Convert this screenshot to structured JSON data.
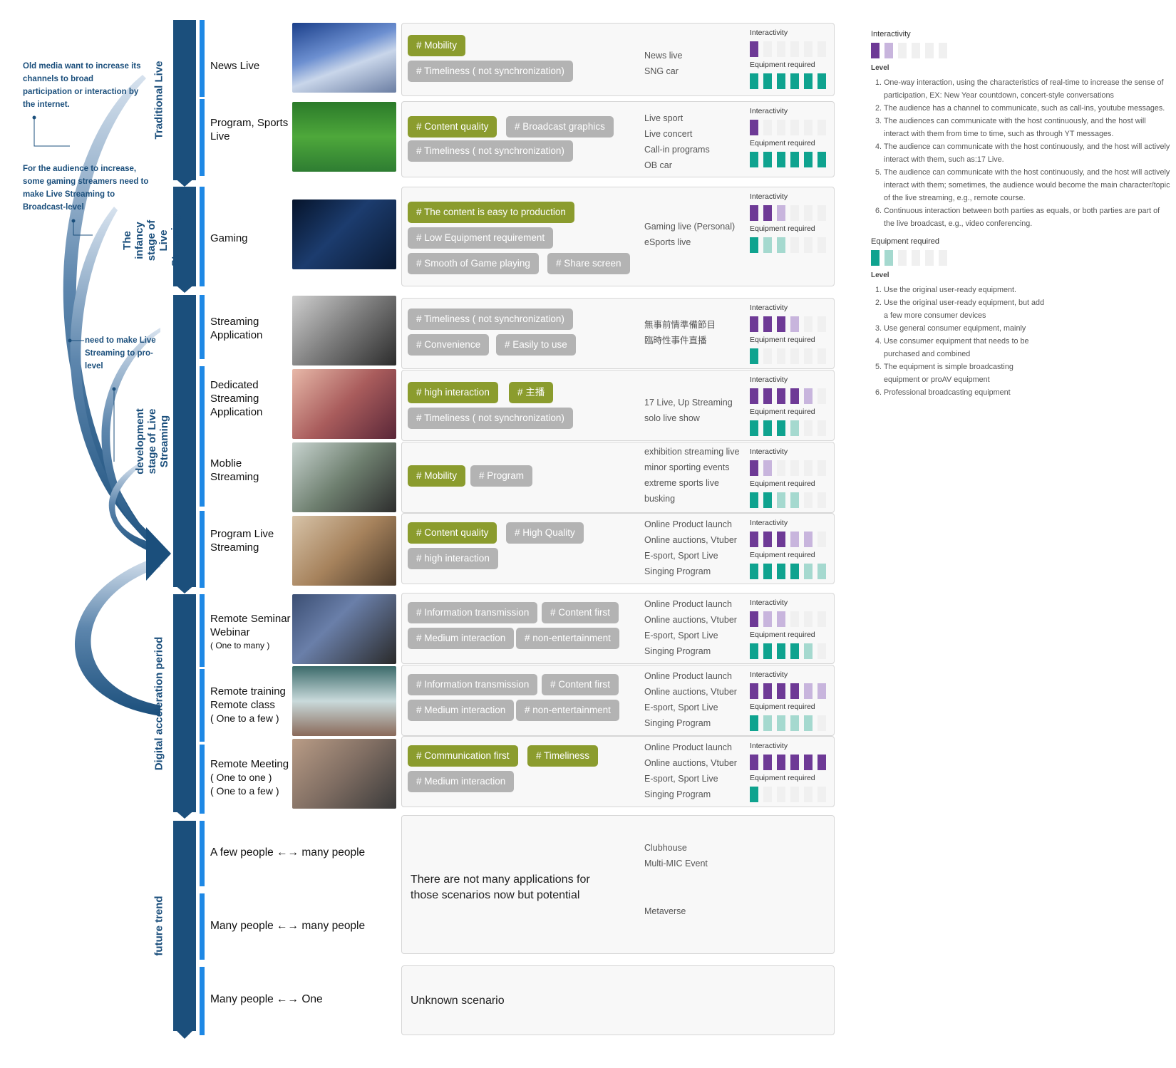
{
  "colors": {
    "primary_blue": "#1b4f7c",
    "row_blue": "#1e88e5",
    "tag_green": "#8b9c2e",
    "tag_gray": "#b3b3b3",
    "interactivity_dark": "#6e3a96",
    "interactivity_light": "#c8b5dd",
    "equipment_dark": "#0fa38f",
    "equipment_light": "#a5d9cf"
  },
  "left_notes": {
    "note1": "Old media want to increase its channels to broad participation or interaction by the internet.",
    "note2": "For the audience to increase, some gaming streamers need to make Live Streaming to Broadcast-level",
    "note3": "need to make Live Streaming to pro-level"
  },
  "phases": {
    "traditional": "Traditional Live",
    "infancy": "The infancy stage of Live Streaming",
    "development": "development stage of Live Streaming",
    "digital": "Digital acceleration period",
    "future": "future trend"
  },
  "labels": {
    "interactivity": "Interactivity",
    "equipment": "Equipment required"
  },
  "rows": [
    {
      "name": "News Live",
      "interactivity": [
        1,
        0,
        0,
        0,
        0,
        0
      ],
      "equipment": [
        1,
        1,
        1,
        1,
        1,
        1
      ],
      "tags": [
        "Mobility",
        "Timeliness ( not synchronization)"
      ],
      "examples": [
        "News live",
        "SNG car"
      ]
    },
    {
      "name": "Program, Sports Live",
      "interactivity": [
        1,
        0,
        0,
        0,
        0,
        0
      ],
      "equipment": [
        1,
        1,
        1,
        1,
        1,
        1
      ],
      "tags": [
        "Content quality",
        "Broadcast graphics",
        "Timeliness ( not synchronization)"
      ],
      "examples": [
        "Live sport",
        "Live concert",
        "Call-in programs",
        "OB car"
      ]
    },
    {
      "name": "Gaming",
      "interactivity": [
        1,
        1,
        0.5,
        0,
        0,
        0
      ],
      "equipment": [
        1,
        0.5,
        0.5,
        0,
        0,
        0
      ],
      "tags": [
        "The content is easy to production",
        "Low Equipment requirement",
        "Smooth of Game playing",
        "Share screen"
      ],
      "examples": [
        "Gaming live (Personal)",
        "eSports live"
      ]
    },
    {
      "name": "Streaming Application",
      "interactivity": [
        1,
        1,
        1,
        0.5,
        0,
        0
      ],
      "equipment": [
        1,
        0,
        0,
        0,
        0,
        0
      ],
      "tags": [
        "Timeliness ( not synchronization)",
        "Convenience",
        "Easily to use"
      ],
      "examples": [
        "無事前情準備節目",
        "臨時性事件直播"
      ]
    },
    {
      "name": "Dedicated Streaming Application",
      "interactivity": [
        1,
        1,
        1,
        1,
        0.5,
        0
      ],
      "equipment": [
        1,
        1,
        1,
        0.5,
        0,
        0
      ],
      "tags": [
        "high interaction",
        "主播",
        "Timeliness ( not synchronization)"
      ],
      "examples": [
        "17 Live, Up Streaming",
        "solo live show"
      ]
    },
    {
      "name": "Moblie Streaming",
      "interactivity": [
        1,
        0.5,
        0,
        0,
        0,
        0
      ],
      "equipment": [
        1,
        1,
        0.5,
        0.5,
        0,
        0
      ],
      "tags": [
        "Mobility",
        "Program"
      ],
      "examples": [
        "exhibition streaming live",
        "minor sporting events",
        "extreme sports live",
        "busking"
      ]
    },
    {
      "name": "Program Live Streaming",
      "interactivity": [
        1,
        1,
        1,
        0.5,
        0.5,
        0
      ],
      "equipment": [
        1,
        1,
        1,
        1,
        0.5,
        0.5
      ],
      "tags": [
        "Content quality",
        "High Quality",
        "high interaction"
      ],
      "examples": [
        "Online Product launch",
        "Online auctions, Vtuber",
        "E-sport, Sport Live",
        "Singing Program"
      ]
    },
    {
      "name": "Remote Seminar Webinar",
      "sub": "( One to many )",
      "interactivity": [
        1,
        0.5,
        0.5,
        0,
        0,
        0
      ],
      "equipment": [
        1,
        1,
        1,
        1,
        0.5,
        0
      ],
      "tags": [
        "Information transmission",
        "Content first",
        "Medium interaction",
        "non-entertainment"
      ],
      "examples": [
        "Online Product launch",
        "Online auctions, Vtuber",
        "E-sport, Sport Live",
        "Singing Program"
      ]
    },
    {
      "name": "Remote training Remote class",
      "sub": "( One to a few )",
      "interactivity": [
        1,
        1,
        1,
        1,
        0.5,
        0.5
      ],
      "equipment": [
        1,
        0.5,
        0.5,
        0.5,
        0.5,
        0
      ],
      "tags": [
        "Information transmission",
        "Content first",
        "Medium interaction",
        "non-entertainment"
      ],
      "examples": [
        "Online Product launch",
        "Online auctions, Vtuber",
        "E-sport, Sport Live",
        "Singing Program"
      ]
    },
    {
      "name": "Remote Meeting",
      "sub": "( One to one )\n( One to a few )",
      "interactivity": [
        1,
        1,
        1,
        1,
        1,
        1
      ],
      "equipment": [
        1,
        0,
        0,
        0,
        0,
        0
      ],
      "tags": [
        "Communication first",
        "Timeliness",
        "Medium interaction"
      ],
      "examples": [
        "Online Product launch",
        "Online auctions, Vtuber",
        "E-sport, Sport Live",
        "Singing Program"
      ]
    }
  ],
  "future": {
    "row1": "A few people ←→ many people",
    "row2": "Many people ←→ many people",
    "row3": "Many people ←→ One",
    "card1_text": "There are not many applications for those scenarios now but potential",
    "card1_examples": [
      "Clubhouse",
      "Multi-MIC Event",
      "Metaverse"
    ],
    "card2_text": "Unknown scenario"
  },
  "legend": {
    "interactivity_title": "Interactivity",
    "level": "Level",
    "interactivity_levels": [
      "One-way interaction, using the characteristics of real-time to increase the sense of participation, EX: New Year countdown, concert-style conversations",
      "The audience has a channel to communicate, such as call-ins, youtube messages.",
      "The audiences can communicate with the host continuously, and the host will interact with them from time to time, such as through YT messages.",
      "The audience can communicate with the host continuously, and the host will actively interact with them, such as:17 Live.",
      "The audience can communicate with the host continuously, and the host will actively interact with them; sometimes, the audience would become the main character/topic of the live streaming, e.g., remote course.",
      "Continuous interaction between both parties as equals, or both parties are part of the live broadcast, e.g., video conferencing."
    ],
    "equipment_title": "Equipment required",
    "equipment_levels": [
      "Use the original user-ready equipment.",
      "Use the original user-ready equipment, but add a few more consumer devices",
      "Use general consumer equipment, mainly",
      "Use consumer equipment that needs to be purchased and combined",
      "The equipment is simple broadcasting equipment or proAV equipment",
      "Professional broadcasting equipment"
    ]
  }
}
